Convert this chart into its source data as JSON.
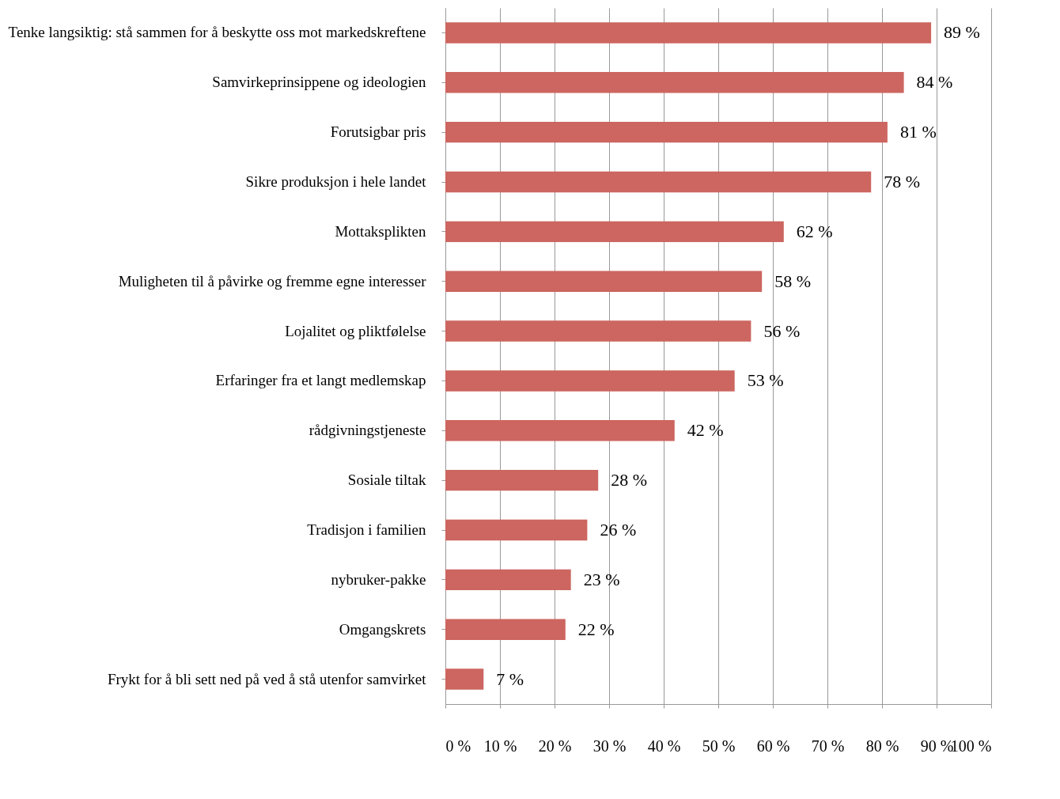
{
  "chart_data": {
    "type": "bar",
    "orientation": "horizontal",
    "categories": [
      "Tenke langsiktig: stå sammen for å beskytte oss mot markedskreftene",
      "Samvirkeprinsippene og ideologien",
      "Forutsigbar pris",
      "Sikre produksjon i hele landet",
      "Mottaksplikten",
      "Muligheten til å påvirke og fremme egne interesser",
      "Lojalitet og pliktfølelse",
      "Erfaringer fra et langt medlemskap",
      "rådgivningstjeneste",
      "Sosiale tiltak",
      "Tradisjon i familien",
      "nybruker-pakke",
      "Omgangskrets",
      "Frykt for å bli sett ned på ved å stå utenfor samvirket"
    ],
    "values": [
      89,
      84,
      81,
      78,
      62,
      58,
      56,
      53,
      42,
      28,
      26,
      23,
      22,
      7
    ],
    "value_labels": [
      "89 %",
      "84 %",
      "81 %",
      "78 %",
      "62 %",
      "58 %",
      "56 %",
      "53 %",
      "42 %",
      "28 %",
      "26 %",
      "23 %",
      "22 %",
      "7 %"
    ],
    "color": "#cd6660",
    "xlim": [
      0,
      100
    ],
    "xticks": [
      {
        "value": 0,
        "label": "0 %"
      },
      {
        "value": 10,
        "label": "10 %"
      },
      {
        "value": 20,
        "label": "20 %"
      },
      {
        "value": 30,
        "label": "30 %"
      },
      {
        "value": 40,
        "label": "40 %"
      },
      {
        "value": 50,
        "label": "50 %"
      },
      {
        "value": 60,
        "label": "60 %"
      },
      {
        "value": 70,
        "label": "70 %"
      },
      {
        "value": 80,
        "label": "80 %"
      },
      {
        "value": 90,
        "label": "90 %"
      },
      {
        "value": 100,
        "label": "100 %"
      }
    ],
    "grid": "x"
  }
}
